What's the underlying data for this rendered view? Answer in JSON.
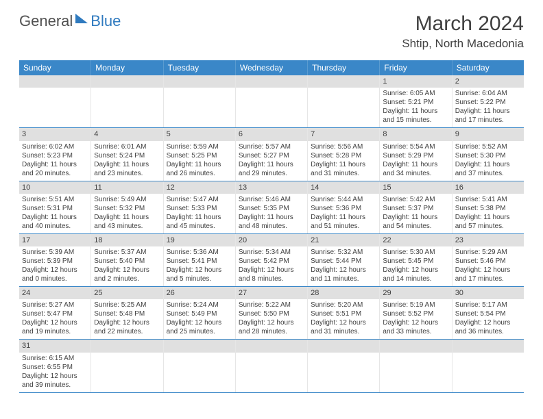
{
  "logo": {
    "part1": "General",
    "part2": "Blue"
  },
  "title": "March 2024",
  "location": "Shtip, North Macedonia",
  "colors": {
    "header_bg": "#3a87c8",
    "header_text": "#ffffff",
    "daynum_bg": "#e0e0e0",
    "row_border": "#3a87c8",
    "body_text": "#404040",
    "logo_blue": "#2f7abf"
  },
  "weekdays": [
    "Sunday",
    "Monday",
    "Tuesday",
    "Wednesday",
    "Thursday",
    "Friday",
    "Saturday"
  ],
  "weeks": [
    [
      null,
      null,
      null,
      null,
      null,
      {
        "n": "1",
        "sr": "Sunrise: 6:05 AM",
        "ss": "Sunset: 5:21 PM",
        "dl": "Daylight: 11 hours and 15 minutes."
      },
      {
        "n": "2",
        "sr": "Sunrise: 6:04 AM",
        "ss": "Sunset: 5:22 PM",
        "dl": "Daylight: 11 hours and 17 minutes."
      }
    ],
    [
      {
        "n": "3",
        "sr": "Sunrise: 6:02 AM",
        "ss": "Sunset: 5:23 PM",
        "dl": "Daylight: 11 hours and 20 minutes."
      },
      {
        "n": "4",
        "sr": "Sunrise: 6:01 AM",
        "ss": "Sunset: 5:24 PM",
        "dl": "Daylight: 11 hours and 23 minutes."
      },
      {
        "n": "5",
        "sr": "Sunrise: 5:59 AM",
        "ss": "Sunset: 5:25 PM",
        "dl": "Daylight: 11 hours and 26 minutes."
      },
      {
        "n": "6",
        "sr": "Sunrise: 5:57 AM",
        "ss": "Sunset: 5:27 PM",
        "dl": "Daylight: 11 hours and 29 minutes."
      },
      {
        "n": "7",
        "sr": "Sunrise: 5:56 AM",
        "ss": "Sunset: 5:28 PM",
        "dl": "Daylight: 11 hours and 31 minutes."
      },
      {
        "n": "8",
        "sr": "Sunrise: 5:54 AM",
        "ss": "Sunset: 5:29 PM",
        "dl": "Daylight: 11 hours and 34 minutes."
      },
      {
        "n": "9",
        "sr": "Sunrise: 5:52 AM",
        "ss": "Sunset: 5:30 PM",
        "dl": "Daylight: 11 hours and 37 minutes."
      }
    ],
    [
      {
        "n": "10",
        "sr": "Sunrise: 5:51 AM",
        "ss": "Sunset: 5:31 PM",
        "dl": "Daylight: 11 hours and 40 minutes."
      },
      {
        "n": "11",
        "sr": "Sunrise: 5:49 AM",
        "ss": "Sunset: 5:32 PM",
        "dl": "Daylight: 11 hours and 43 minutes."
      },
      {
        "n": "12",
        "sr": "Sunrise: 5:47 AM",
        "ss": "Sunset: 5:33 PM",
        "dl": "Daylight: 11 hours and 45 minutes."
      },
      {
        "n": "13",
        "sr": "Sunrise: 5:46 AM",
        "ss": "Sunset: 5:35 PM",
        "dl": "Daylight: 11 hours and 48 minutes."
      },
      {
        "n": "14",
        "sr": "Sunrise: 5:44 AM",
        "ss": "Sunset: 5:36 PM",
        "dl": "Daylight: 11 hours and 51 minutes."
      },
      {
        "n": "15",
        "sr": "Sunrise: 5:42 AM",
        "ss": "Sunset: 5:37 PM",
        "dl": "Daylight: 11 hours and 54 minutes."
      },
      {
        "n": "16",
        "sr": "Sunrise: 5:41 AM",
        "ss": "Sunset: 5:38 PM",
        "dl": "Daylight: 11 hours and 57 minutes."
      }
    ],
    [
      {
        "n": "17",
        "sr": "Sunrise: 5:39 AM",
        "ss": "Sunset: 5:39 PM",
        "dl": "Daylight: 12 hours and 0 minutes."
      },
      {
        "n": "18",
        "sr": "Sunrise: 5:37 AM",
        "ss": "Sunset: 5:40 PM",
        "dl": "Daylight: 12 hours and 2 minutes."
      },
      {
        "n": "19",
        "sr": "Sunrise: 5:36 AM",
        "ss": "Sunset: 5:41 PM",
        "dl": "Daylight: 12 hours and 5 minutes."
      },
      {
        "n": "20",
        "sr": "Sunrise: 5:34 AM",
        "ss": "Sunset: 5:42 PM",
        "dl": "Daylight: 12 hours and 8 minutes."
      },
      {
        "n": "21",
        "sr": "Sunrise: 5:32 AM",
        "ss": "Sunset: 5:44 PM",
        "dl": "Daylight: 12 hours and 11 minutes."
      },
      {
        "n": "22",
        "sr": "Sunrise: 5:30 AM",
        "ss": "Sunset: 5:45 PM",
        "dl": "Daylight: 12 hours and 14 minutes."
      },
      {
        "n": "23",
        "sr": "Sunrise: 5:29 AM",
        "ss": "Sunset: 5:46 PM",
        "dl": "Daylight: 12 hours and 17 minutes."
      }
    ],
    [
      {
        "n": "24",
        "sr": "Sunrise: 5:27 AM",
        "ss": "Sunset: 5:47 PM",
        "dl": "Daylight: 12 hours and 19 minutes."
      },
      {
        "n": "25",
        "sr": "Sunrise: 5:25 AM",
        "ss": "Sunset: 5:48 PM",
        "dl": "Daylight: 12 hours and 22 minutes."
      },
      {
        "n": "26",
        "sr": "Sunrise: 5:24 AM",
        "ss": "Sunset: 5:49 PM",
        "dl": "Daylight: 12 hours and 25 minutes."
      },
      {
        "n": "27",
        "sr": "Sunrise: 5:22 AM",
        "ss": "Sunset: 5:50 PM",
        "dl": "Daylight: 12 hours and 28 minutes."
      },
      {
        "n": "28",
        "sr": "Sunrise: 5:20 AM",
        "ss": "Sunset: 5:51 PM",
        "dl": "Daylight: 12 hours and 31 minutes."
      },
      {
        "n": "29",
        "sr": "Sunrise: 5:19 AM",
        "ss": "Sunset: 5:52 PM",
        "dl": "Daylight: 12 hours and 33 minutes."
      },
      {
        "n": "30",
        "sr": "Sunrise: 5:17 AM",
        "ss": "Sunset: 5:54 PM",
        "dl": "Daylight: 12 hours and 36 minutes."
      }
    ],
    [
      {
        "n": "31",
        "sr": "Sunrise: 6:15 AM",
        "ss": "Sunset: 6:55 PM",
        "dl": "Daylight: 12 hours and 39 minutes."
      },
      null,
      null,
      null,
      null,
      null,
      null
    ]
  ]
}
